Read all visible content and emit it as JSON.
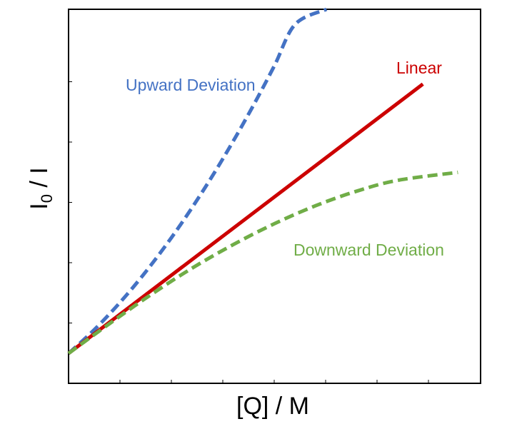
{
  "chart_data": {
    "type": "line",
    "title": "",
    "xlabel": "[Q] / M",
    "ylabel_main": "I",
    "ylabel_sub": "0",
    "ylabel_rest": " / I",
    "xlim": [
      0,
      10
    ],
    "ylim": [
      0,
      10
    ],
    "x_tick_count": 8,
    "y_tick_count": 6,
    "tick_labels_shown": false,
    "grid": false,
    "legend": "none",
    "series": [
      {
        "key": "upward",
        "name": "Upward Deviation",
        "color": "#4472C4",
        "dash": "dashed",
        "x": [
          0,
          0.5,
          1.0,
          1.5,
          2.0,
          2.5,
          3.0,
          3.5,
          4.0,
          4.5,
          5.0,
          5.5,
          6.26
        ],
        "y": [
          0.8,
          1.3,
          1.86,
          2.48,
          3.16,
          3.9,
          4.7,
          5.56,
          6.48,
          7.46,
          8.5,
          9.6,
          10.0
        ]
      },
      {
        "key": "linear",
        "name": "Linear",
        "color": "#CC0000",
        "dash": "solid",
        "x": [
          0,
          8.6
        ],
        "y": [
          0.8,
          8.0
        ]
      },
      {
        "key": "downward",
        "name": "Downward Deviation",
        "color": "#70AD47",
        "dash": "dashed",
        "x": [
          0,
          1,
          2,
          3,
          4,
          5,
          6,
          7,
          8,
          9.45
        ],
        "y": [
          0.8,
          1.6,
          2.37,
          3.08,
          3.71,
          4.27,
          4.75,
          5.14,
          5.43,
          5.64
        ]
      }
    ]
  }
}
